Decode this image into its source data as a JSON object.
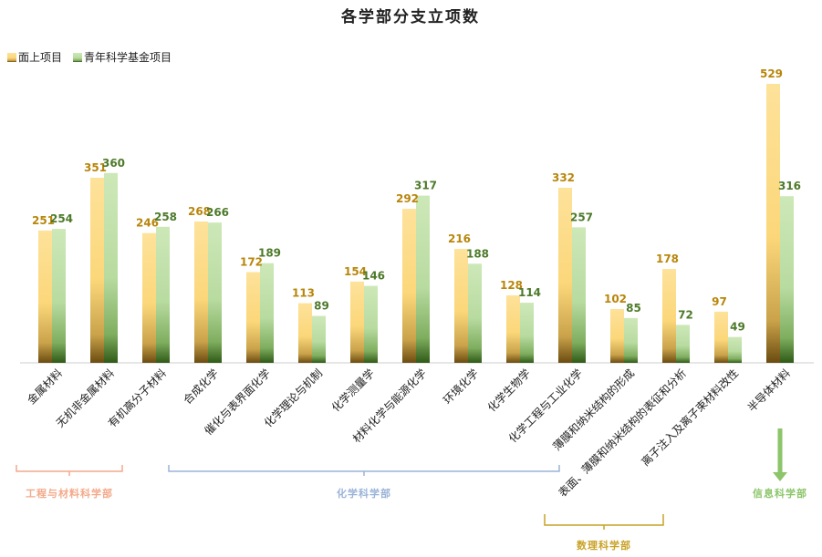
{
  "chart_data": {
    "type": "bar",
    "title": "各学部分支立项数",
    "categories": [
      "金属材料",
      "无机非金属材料",
      "有机高分子材料",
      "合成化学",
      "催化与表界面化学",
      "化学理论与机制",
      "化学测量学",
      "材料化学与能源化学",
      "环境化学",
      "化学生物学",
      "化学工程与工业化学",
      "薄膜和纳米结构的形成",
      "表面、薄膜和纳米结构的表征和分析",
      "离子注入及离子束材料改性",
      "半导体材料"
    ],
    "series": [
      {
        "name": "面上项目",
        "values": [
          251,
          351,
          246,
          268,
          172,
          113,
          154,
          292,
          216,
          128,
          332,
          102,
          178,
          97,
          529
        ]
      },
      {
        "name": "青年科学基金项目",
        "values": [
          254,
          360,
          258,
          266,
          189,
          89,
          146,
          317,
          188,
          114,
          257,
          85,
          72,
          49,
          316
        ]
      }
    ],
    "ylim": [
      0,
      560
    ],
    "grid": false,
    "legend_position": "top-left",
    "groups": [
      {
        "label": "工程与材料科学部",
        "first": 0,
        "last": 2,
        "marker": "bracket-down",
        "color": "#f4a98a"
      },
      {
        "label": "化学科学部",
        "first": 3,
        "last": 10,
        "marker": "bracket-down",
        "color": "#9ab3d8"
      },
      {
        "label": "数理科学部",
        "first": 11,
        "last": 13,
        "marker": "bracket-up",
        "color": "#c9a227"
      },
      {
        "label": "信息科学部",
        "first": 14,
        "last": 14,
        "marker": "arrow",
        "color": "#8cc56a"
      }
    ]
  },
  "colors": {
    "series_1": "#fcd77a",
    "series_1_dark": "#7a5a16",
    "series_2": "#b8dba0",
    "series_2_dark": "#3f6b22",
    "label_1": "#b8860b",
    "label_2": "#4d7a2a",
    "axis": "#cccccc"
  }
}
